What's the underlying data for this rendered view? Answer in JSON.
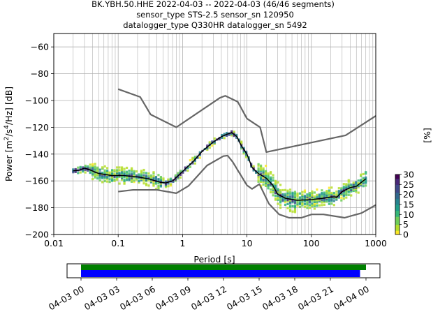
{
  "chart_data": [
    {
      "type": "line",
      "title_lines": [
        "BK.YBH.50.HHE   2022-04-03 -- 2022-04-03  (46/46 segments)",
        "sensor_type STS-2.5 sensor_sn 120950",
        "datalogger_type Q330HR datalogger_sn 5492"
      ],
      "xlabel": "Period [s]",
      "ylabel": "Power [m²/s⁴/Hz] [dB]",
      "xscale": "log",
      "xlim": [
        0.01,
        1000
      ],
      "ylim": [
        -200,
        -50
      ],
      "x_ticks": [
        0.01,
        0.1,
        1,
        10,
        100,
        1000
      ],
      "x_tick_labels": [
        "0.01",
        "0.1",
        "1",
        "10",
        "100",
        "1000"
      ],
      "y_ticks": [
        -200,
        -180,
        -160,
        -140,
        -120,
        -100,
        -80,
        -60
      ],
      "y_tick_labels": [
        "−200",
        "−180",
        "−160",
        "−140",
        "−120",
        "−100",
        "−80",
        "−60"
      ],
      "grid": true,
      "series": [
        {
          "name": "",
          "color": "#666666",
          "x": [
            0.1,
            0.22,
            0.32,
            0.8,
            3.8,
            4.6,
            7.2,
            10.0,
            16.0,
            20.0,
            340,
            1000
          ],
          "y": [
            -91.5,
            -97.4,
            -110.5,
            -120.0,
            -98.0,
            -96.5,
            -101.0,
            -113.5,
            -120.0,
            -138.5,
            -126.0,
            -111.5
          ]
        },
        {
          "name": "",
          "color": "#666666",
          "x": [
            0.1,
            0.17,
            0.4,
            0.8,
            1.24,
            2.4,
            4.3,
            5.0,
            6.0,
            10.0,
            12.0,
            15.6,
            21.9,
            31.6,
            45.0,
            70.0,
            101,
            154,
            328,
            600,
            1000
          ],
          "y": [
            -168.0,
            -166.7,
            -166.7,
            -169.2,
            -163.7,
            -148.5,
            -141.5,
            -141.1,
            -145.8,
            -163.3,
            -166.0,
            -162.4,
            -177.0,
            -185.0,
            -187.5,
            -187.5,
            -185.0,
            -185.0,
            -187.5,
            -184.0,
            -178.0
          ]
        },
        {
          "name": "",
          "color": "#000000",
          "x": [
            0.02,
            0.025,
            0.03,
            0.035,
            0.05,
            0.08,
            0.12,
            0.2,
            0.3,
            0.45,
            0.55,
            0.7,
            1.0,
            1.5,
            2.0,
            3.0,
            4.0,
            5.0,
            5.8,
            7.0,
            8.0,
            10.0,
            12.0,
            15.0,
            20.0,
            25.0,
            30.0,
            40.0,
            60.0,
            100,
            150,
            200,
            250,
            300,
            400,
            500,
            700
          ],
          "y": [
            -152.5,
            -152.0,
            -150.5,
            -151.5,
            -154.5,
            -156.0,
            -156.0,
            -157.0,
            -158.5,
            -161.0,
            -161.5,
            -160.0,
            -153.0,
            -145.0,
            -138.0,
            -131.0,
            -127.0,
            -125.0,
            -124.0,
            -127.0,
            -133.0,
            -140.0,
            -150.0,
            -154.5,
            -158.0,
            -163.0,
            -170.0,
            -173.0,
            -174.5,
            -174.0,
            -173.0,
            -172.0,
            -172.0,
            -168.0,
            -165.0,
            -164.0,
            -158.5
          ]
        }
      ],
      "colorbar": {
        "label": "[%]",
        "colormap": "viridis_r",
        "range": [
          0,
          30
        ],
        "ticks": [
          0,
          5,
          10,
          15,
          20,
          25,
          30
        ],
        "tick_labels": [
          "0",
          "5",
          "10",
          "15",
          "20",
          "25",
          "30"
        ]
      }
    },
    {
      "type": "timeline",
      "tick_labels": [
        "04-03 00",
        "04-03 03",
        "04-03 06",
        "04-03 09",
        "04-03 12",
        "04-03 15",
        "04-03 18",
        "04-03 21",
        "04-04 00"
      ],
      "tick_hours": [
        0,
        3,
        6,
        9,
        12,
        15,
        18,
        21,
        24
      ],
      "bars": [
        {
          "color": "#008000",
          "start_hour": 0,
          "end_hour": 24.0
        },
        {
          "color": "#0000ff",
          "start_hour": 0,
          "end_hour": 23.5
        }
      ]
    }
  ]
}
